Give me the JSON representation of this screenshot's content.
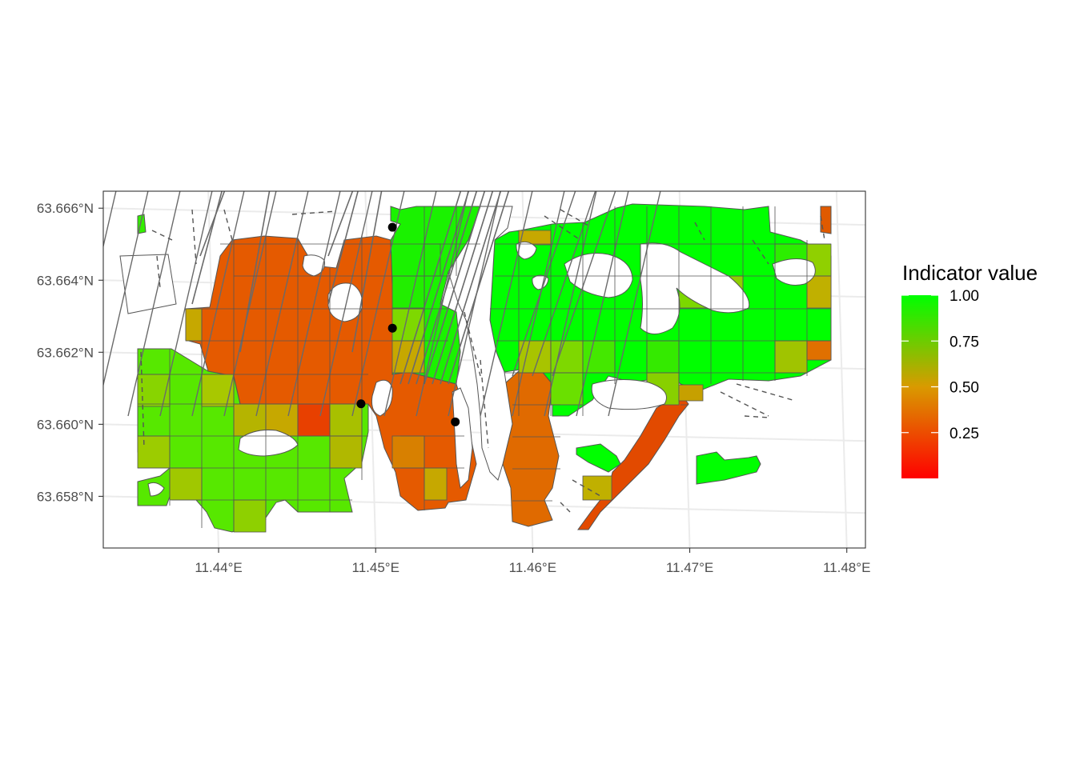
{
  "legend": {
    "title": "Indicator value",
    "ticks": [
      {
        "value": 1.0,
        "label": "1.00"
      },
      {
        "value": 0.75,
        "label": "0.75"
      },
      {
        "value": 0.5,
        "label": "0.50"
      },
      {
        "value": 0.25,
        "label": "0.25"
      }
    ],
    "min": 0,
    "max": 1,
    "color_low": "#ff0000",
    "color_mid": "#d99a00",
    "color_high": "#00ff00"
  },
  "axes": {
    "x_ticks": [
      {
        "value": 11.44,
        "label": "11.44°E"
      },
      {
        "value": 11.45,
        "label": "11.45°E"
      },
      {
        "value": 11.46,
        "label": "11.46°E"
      },
      {
        "value": 11.47,
        "label": "11.47°E"
      },
      {
        "value": 11.48,
        "label": "11.48°E"
      }
    ],
    "y_ticks": [
      {
        "value": 63.666,
        "label": "63.666°N"
      },
      {
        "value": 63.664,
        "label": "63.664°N"
      },
      {
        "value": 63.662,
        "label": "63.662°N"
      },
      {
        "value": 63.66,
        "label": "63.660°N"
      },
      {
        "value": 63.658,
        "label": "63.658°N"
      }
    ],
    "x_range": [
      11.433,
      11.4815
    ],
    "y_range": [
      63.6568,
      63.6667
    ],
    "grid_color": "#ebebeb",
    "panel_border": "#333333"
  },
  "points": [
    {
      "lon": 11.4514,
      "lat": 63.6657
    },
    {
      "lon": 11.4514,
      "lat": 63.6629
    },
    {
      "lon": 11.4494,
      "lat": 63.6608
    },
    {
      "lon": 11.4554,
      "lat": 63.6603
    }
  ]
}
